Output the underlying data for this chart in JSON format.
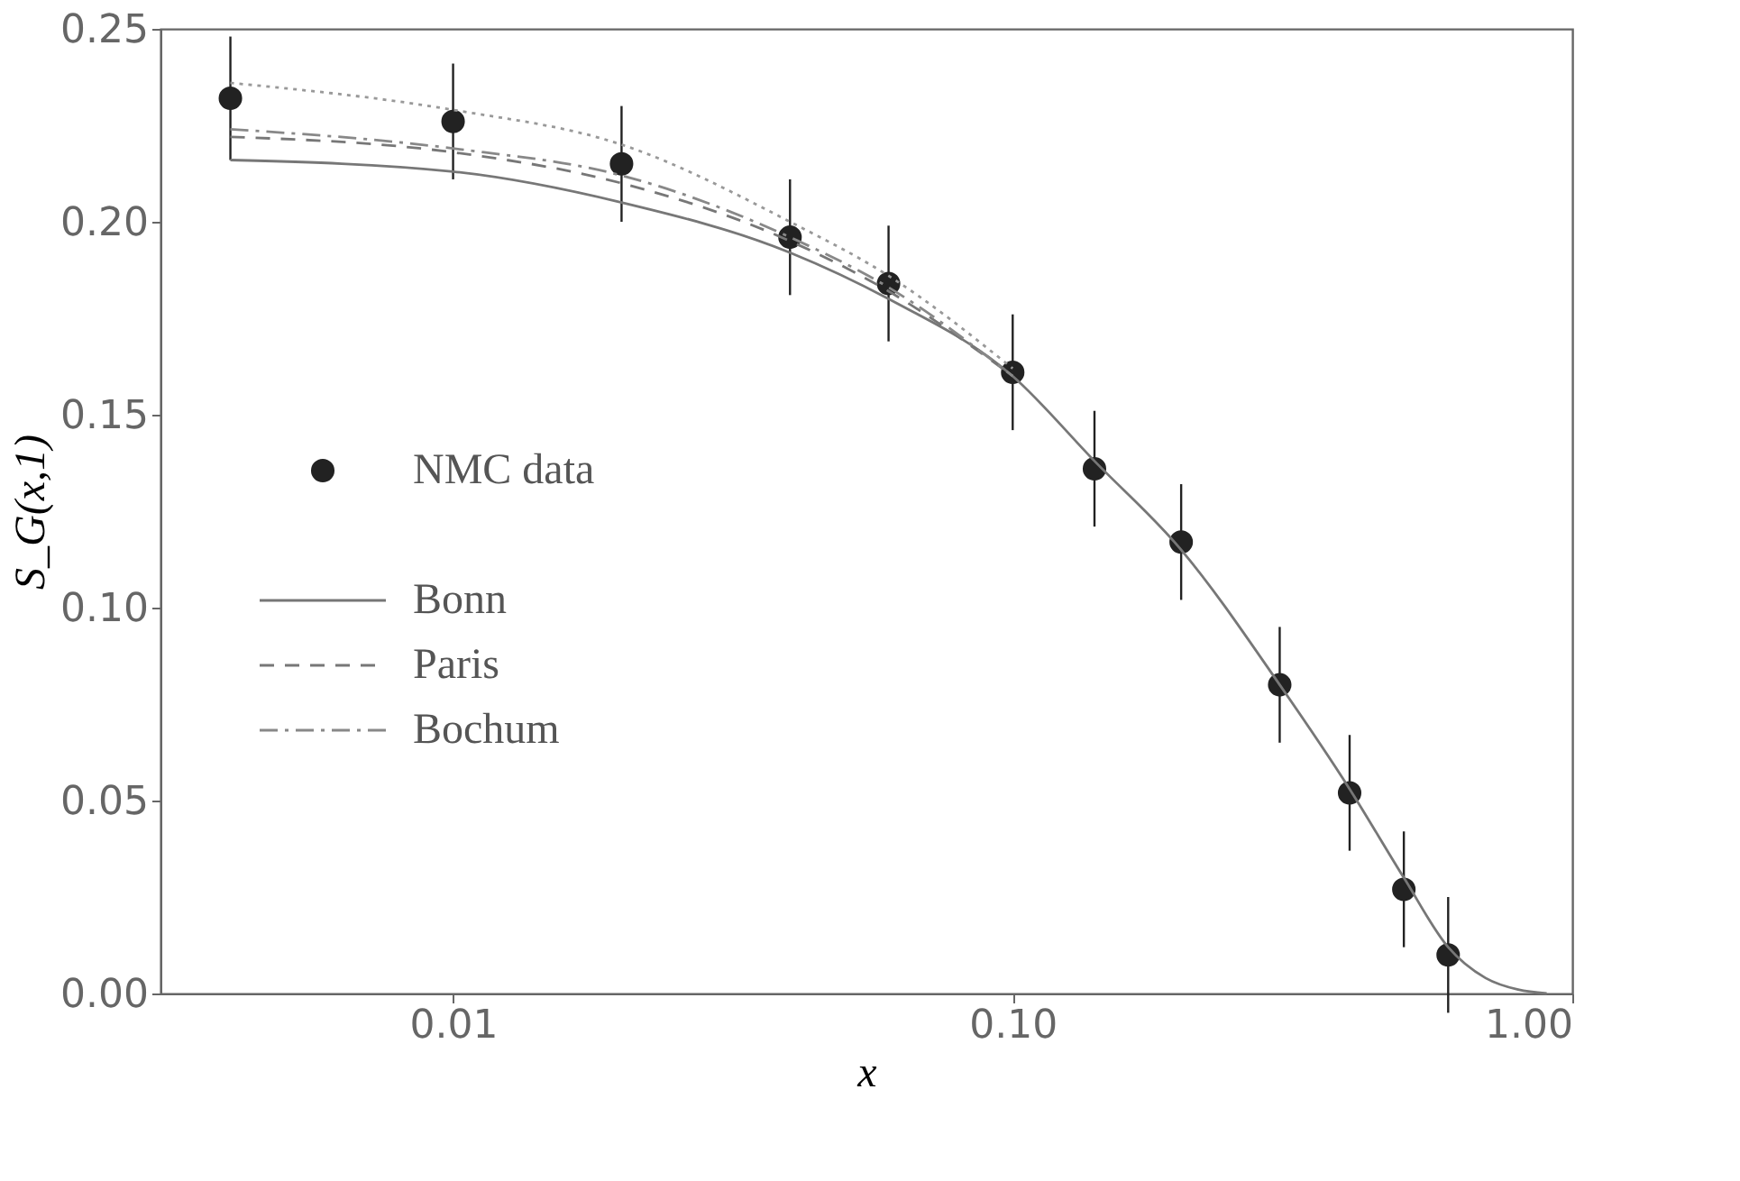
{
  "chart_data": {
    "type": "line",
    "xlabel": "x",
    "ylabel": "S_G(x,1)",
    "log": "x",
    "grid": false,
    "legend": "left",
    "xlim": [
      0.003,
      1.0
    ],
    "xticks": [
      {
        "value": 0.01,
        "label": "0.01"
      },
      {
        "value": 0.1,
        "label": "0.10"
      },
      {
        "value": 1.0,
        "label": "1.00"
      }
    ],
    "ylim": [
      0,
      0.25
    ],
    "yticks": [
      {
        "value": 0,
        "label": "0.00"
      },
      {
        "value": 0.05,
        "label": "0.05"
      },
      {
        "value": 0.1,
        "label": "0.10"
      },
      {
        "value": 0.15,
        "label": "0.15"
      },
      {
        "value": 0.2,
        "label": "0.20"
      },
      {
        "value": 0.25,
        "label": "0.25"
      }
    ],
    "series": [
      {
        "name": "NMC data",
        "type": "scatter",
        "marker": "circle",
        "color": "#222222",
        "x": [
          0.004,
          0.01,
          0.02,
          0.04,
          0.06,
          0.1,
          0.14,
          0.2,
          0.3,
          0.4,
          0.5,
          0.6
        ],
        "values": [
          0.232,
          0.226,
          0.215,
          0.196,
          0.184,
          0.161,
          0.136,
          0.117,
          0.08,
          0.052,
          0.027,
          0.01
        ],
        "errors": [
          0.016,
          0.015,
          0.015,
          0.015,
          0.015,
          0.015,
          0.015,
          0.015,
          0.015,
          0.015,
          0.015,
          0.015
        ]
      },
      {
        "line_style": "dotted",
        "color": "#999999",
        "x": [
          0.004,
          0.01,
          0.02,
          0.04,
          0.06,
          0.1
        ],
        "values": [
          0.236,
          0.229,
          0.22,
          0.2,
          0.186,
          0.162
        ]
      },
      {
        "name": "Bonn",
        "line_style": "solid",
        "color": "#777777",
        "x": [
          0.004,
          0.01,
          0.02,
          0.04,
          0.06,
          0.1,
          0.14,
          0.2,
          0.3,
          0.4,
          0.5,
          0.6,
          0.7,
          0.8,
          0.9
        ],
        "values": [
          0.216,
          0.213,
          0.205,
          0.192,
          0.18,
          0.16,
          0.138,
          0.115,
          0.08,
          0.053,
          0.03,
          0.012,
          0.004,
          0.001,
          0.0
        ]
      },
      {
        "name": "Paris",
        "line_style": "dashed",
        "color": "#777777",
        "x": [
          0.004,
          0.01,
          0.02,
          0.04,
          0.06,
          0.1
        ],
        "values": [
          0.222,
          0.218,
          0.21,
          0.195,
          0.182,
          0.16
        ]
      },
      {
        "name": "Bochum",
        "line_style": "dashdot",
        "color": "#888888",
        "x": [
          0.004,
          0.01,
          0.02,
          0.04,
          0.06,
          0.1
        ],
        "values": [
          0.224,
          0.219,
          0.212,
          0.196,
          0.183,
          0.16
        ]
      }
    ]
  }
}
